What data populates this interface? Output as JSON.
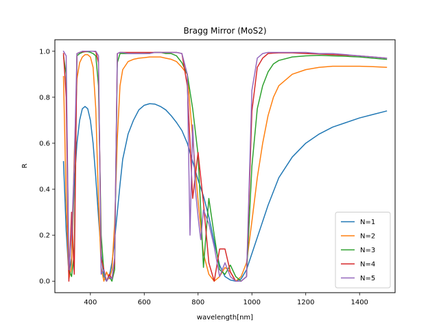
{
  "chart_data": {
    "type": "line",
    "title": "Bragg Mirror (MoS2)",
    "xlabel": "wavelength[nm]",
    "ylabel": "R",
    "xlim": [
      268,
      1532
    ],
    "ylim": [
      -0.05,
      1.05
    ],
    "xticks": [
      400,
      600,
      800,
      1000,
      1200,
      1400
    ],
    "yticks": [
      0.0,
      0.2,
      0.4,
      0.6,
      0.8,
      1.0
    ],
    "xtick_labels": [
      "400",
      "600",
      "800",
      "1000",
      "1200",
      "1400"
    ],
    "ytick_labels": [
      "0.0",
      "0.2",
      "0.4",
      "0.6",
      "0.8",
      "1.0"
    ],
    "grid": false,
    "legend_position": "lower-right",
    "series": [
      {
        "name": "N=1",
        "color": "#1f77b4",
        "x": [
          300,
          310,
          320,
          330,
          340,
          350,
          360,
          370,
          380,
          390,
          400,
          410,
          420,
          430,
          440,
          450,
          460,
          470,
          480,
          490,
          500,
          510,
          520,
          540,
          560,
          580,
          600,
          620,
          640,
          660,
          680,
          700,
          720,
          740,
          760,
          780,
          800,
          820,
          840,
          860,
          880,
          900,
          920,
          940,
          960,
          980,
          1000,
          1020,
          1040,
          1060,
          1080,
          1100,
          1150,
          1200,
          1250,
          1300,
          1350,
          1400,
          1450,
          1500
        ],
        "y": [
          0.52,
          0.22,
          0.03,
          0.1,
          0.42,
          0.6,
          0.7,
          0.75,
          0.76,
          0.75,
          0.7,
          0.6,
          0.45,
          0.28,
          0.12,
          0.02,
          0.0,
          0.02,
          0.08,
          0.18,
          0.3,
          0.42,
          0.53,
          0.64,
          0.7,
          0.745,
          0.765,
          0.772,
          0.77,
          0.76,
          0.745,
          0.72,
          0.69,
          0.655,
          0.6,
          0.52,
          0.44,
          0.37,
          0.28,
          0.17,
          0.07,
          0.02,
          0.005,
          0.0,
          0.01,
          0.05,
          0.12,
          0.19,
          0.26,
          0.33,
          0.39,
          0.45,
          0.54,
          0.6,
          0.64,
          0.67,
          0.69,
          0.71,
          0.725,
          0.74
        ]
      },
      {
        "name": "N=2",
        "color": "#ff7f0e",
        "x": [
          300,
          310,
          320,
          330,
          340,
          350,
          360,
          370,
          380,
          390,
          400,
          410,
          420,
          430,
          440,
          450,
          460,
          470,
          480,
          490,
          500,
          510,
          520,
          540,
          560,
          580,
          600,
          620,
          640,
          660,
          680,
          700,
          720,
          740,
          760,
          780,
          800,
          820,
          840,
          860,
          880,
          900,
          920,
          940,
          960,
          980,
          1000,
          1020,
          1040,
          1060,
          1080,
          1100,
          1150,
          1200,
          1250,
          1300,
          1350,
          1400,
          1450,
          1500
        ],
        "y": [
          0.89,
          0.35,
          0.01,
          0.06,
          0.55,
          0.88,
          0.95,
          0.975,
          0.985,
          0.985,
          0.975,
          0.93,
          0.75,
          0.35,
          0.06,
          0.0,
          0.04,
          0.01,
          0.05,
          0.25,
          0.62,
          0.85,
          0.92,
          0.955,
          0.965,
          0.97,
          0.972,
          0.975,
          0.975,
          0.975,
          0.97,
          0.965,
          0.955,
          0.93,
          0.9,
          0.62,
          0.35,
          0.12,
          0.03,
          0.0,
          0.02,
          0.06,
          0.04,
          0.0,
          0.02,
          0.08,
          0.26,
          0.45,
          0.6,
          0.72,
          0.8,
          0.85,
          0.9,
          0.92,
          0.93,
          0.935,
          0.935,
          0.935,
          0.933,
          0.93
        ]
      },
      {
        "name": "N=3",
        "color": "#2ca02c",
        "x": [
          300,
          310,
          320,
          330,
          340,
          350,
          360,
          370,
          380,
          390,
          400,
          410,
          420,
          430,
          440,
          450,
          460,
          470,
          480,
          490,
          500,
          510,
          520,
          540,
          560,
          580,
          600,
          620,
          640,
          660,
          680,
          700,
          720,
          740,
          760,
          780,
          800,
          820,
          840,
          860,
          880,
          900,
          920,
          940,
          960,
          980,
          1000,
          1020,
          1040,
          1060,
          1080,
          1100,
          1150,
          1200,
          1250,
          1300,
          1350,
          1400,
          1450,
          1500
        ],
        "y": [
          0.98,
          0.9,
          0.05,
          0.02,
          0.12,
          0.98,
          0.99,
          0.995,
          0.998,
          0.998,
          0.995,
          0.99,
          0.98,
          0.85,
          0.2,
          0.04,
          0.0,
          0.02,
          0.0,
          0.05,
          0.95,
          0.99,
          0.99,
          0.99,
          0.99,
          0.99,
          0.99,
          0.992,
          0.995,
          0.995,
          0.99,
          0.99,
          0.98,
          0.95,
          0.9,
          0.75,
          0.55,
          0.06,
          0.36,
          0.2,
          0.05,
          0.03,
          0.07,
          0.02,
          0.0,
          0.02,
          0.5,
          0.75,
          0.85,
          0.91,
          0.945,
          0.96,
          0.975,
          0.98,
          0.982,
          0.98,
          0.978,
          0.975,
          0.97,
          0.965
        ]
      },
      {
        "name": "N=4",
        "color": "#d62728",
        "x": [
          300,
          310,
          320,
          330,
          340,
          350,
          360,
          370,
          380,
          390,
          400,
          410,
          420,
          430,
          440,
          450,
          460,
          470,
          480,
          490,
          500,
          510,
          520,
          540,
          560,
          580,
          600,
          620,
          640,
          660,
          680,
          700,
          720,
          740,
          760,
          780,
          800,
          820,
          840,
          860,
          880,
          900,
          920,
          940,
          960,
          980,
          1000,
          1020,
          1040,
          1060,
          1080,
          1100,
          1150,
          1200,
          1250,
          1300,
          1350,
          1400,
          1450,
          1500
        ],
        "y": [
          0.99,
          0.8,
          0.0,
          0.3,
          0.03,
          0.99,
          0.995,
          0.998,
          0.998,
          1.0,
          1.0,
          1.0,
          0.998,
          0.95,
          0.1,
          0.05,
          0.0,
          0.03,
          0.01,
          0.08,
          0.99,
          0.995,
          0.995,
          0.995,
          0.995,
          0.995,
          0.995,
          0.995,
          0.995,
          0.995,
          0.995,
          0.995,
          0.995,
          0.99,
          0.85,
          0.36,
          0.56,
          0.34,
          0.08,
          0.0,
          0.14,
          0.14,
          0.04,
          0.0,
          0.0,
          0.02,
          0.74,
          0.93,
          0.97,
          0.99,
          0.992,
          0.993,
          0.993,
          0.99,
          0.988,
          0.985,
          0.983,
          0.98,
          0.975,
          0.97
        ]
      },
      {
        "name": "N=5",
        "color": "#9467bd",
        "x": [
          300,
          310,
          320,
          330,
          340,
          350,
          360,
          370,
          380,
          390,
          400,
          410,
          420,
          430,
          440,
          450,
          460,
          470,
          480,
          490,
          500,
          510,
          520,
          540,
          560,
          580,
          600,
          620,
          640,
          660,
          680,
          700,
          720,
          740,
          760,
          770,
          780,
          790,
          800,
          810,
          820,
          840,
          860,
          880,
          900,
          920,
          940,
          960,
          980,
          1000,
          1020,
          1040,
          1060,
          1080,
          1100,
          1150,
          1200,
          1250,
          1300,
          1350,
          1400,
          1450,
          1500
        ],
        "y": [
          1.0,
          0.98,
          0.05,
          0.2,
          0.5,
          0.99,
          0.995,
          1.0,
          1.0,
          1.0,
          1.0,
          1.0,
          1.0,
          0.98,
          0.03,
          0.05,
          0.0,
          0.02,
          0.01,
          0.1,
          0.99,
          0.995,
          0.995,
          0.99,
          0.99,
          0.99,
          0.99,
          0.99,
          0.995,
          0.995,
          0.995,
          0.995,
          0.995,
          0.99,
          0.9,
          0.2,
          0.68,
          0.4,
          0.28,
          0.18,
          0.31,
          0.25,
          0.15,
          0.02,
          0.08,
          0.02,
          0.0,
          0.0,
          0.02,
          0.83,
          0.97,
          0.99,
          0.995,
          0.995,
          0.995,
          0.995,
          0.995,
          0.99,
          0.99,
          0.985,
          0.98,
          0.975,
          0.97
        ]
      }
    ]
  }
}
